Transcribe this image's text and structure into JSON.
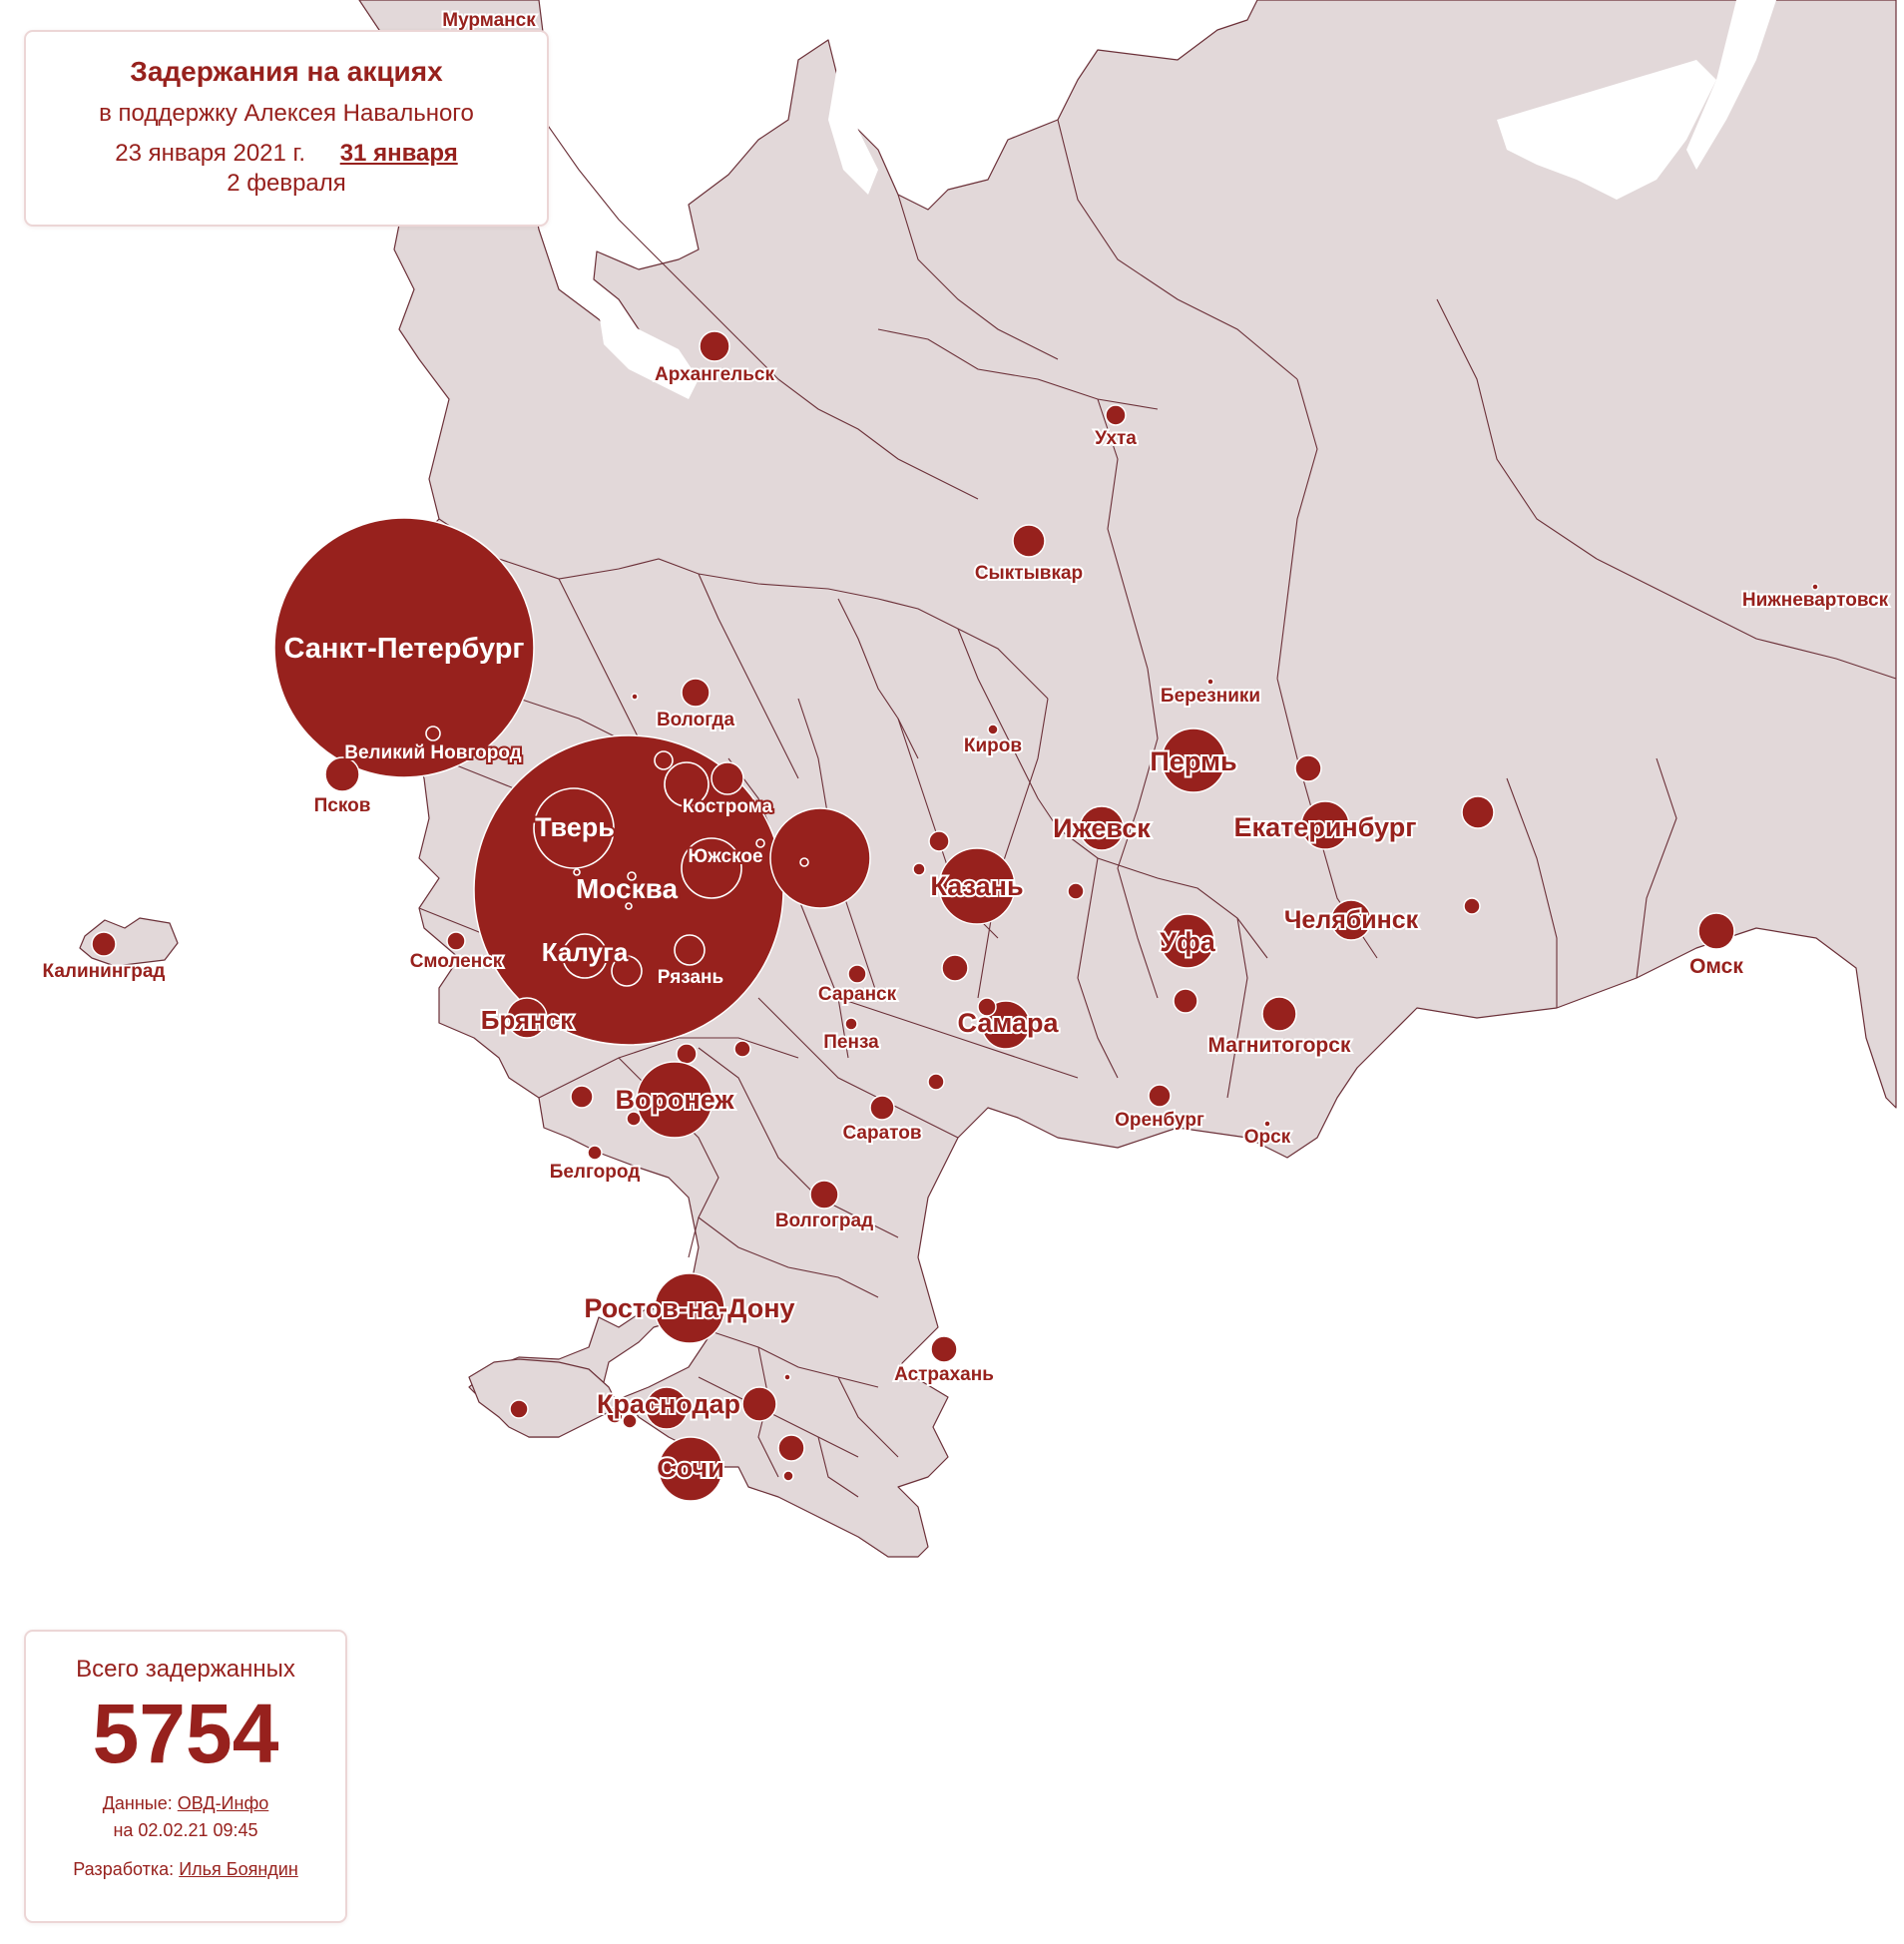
{
  "header": {
    "title": "Задержания на акциях",
    "subtitle": "в поддержку Алексея Навального",
    "dates": [
      "23 января 2021 г.",
      "31 января",
      "2 февраля"
    ],
    "active_date": "31 января"
  },
  "summary": {
    "label": "Всего задержанных",
    "total": "5754",
    "source_prefix": "Данные:",
    "source_name": "ОВД-Инфо",
    "updated": "на 02.02.21 09:45",
    "dev_prefix": "Разработка:",
    "dev_name": "Илья Бояндин"
  },
  "colors": {
    "accent": "#97211d",
    "land": "#e2d8d9",
    "border": "#6b3038",
    "panel_border": "#ecd6d6"
  },
  "cities": [
    {
      "name": "Санкт-Петербург",
      "show_label": true
    },
    {
      "name": "Москва",
      "show_label": true
    },
    {
      "name": "Тверь",
      "show_label": true
    },
    {
      "name": "Калуга",
      "show_label": true
    },
    {
      "name": "Рязань",
      "show_label": true
    },
    {
      "name": "Кострома",
      "show_label": true
    },
    {
      "name": "Южское",
      "show_label": true
    },
    {
      "name": "Великий Новгород",
      "show_label": true
    },
    {
      "name": "Псков",
      "show_label": true
    },
    {
      "name": "Смоленск",
      "show_label": true
    },
    {
      "name": "Брянск",
      "show_label": true
    },
    {
      "name": "Воронеж",
      "show_label": true
    },
    {
      "name": "Белгород",
      "show_label": true
    },
    {
      "name": "Вологда",
      "show_label": true
    },
    {
      "name": "Архангельск",
      "show_label": true
    },
    {
      "name": "Мурманск",
      "show_label": true
    },
    {
      "name": "Калининград",
      "show_label": true
    },
    {
      "name": "Ухта",
      "show_label": true
    },
    {
      "name": "Сыктывкар",
      "show_label": true
    },
    {
      "name": "Киров",
      "show_label": true
    },
    {
      "name": "Березники",
      "show_label": true
    },
    {
      "name": "Пермь",
      "show_label": true
    },
    {
      "name": "Ижевск",
      "show_label": true
    },
    {
      "name": "Казань",
      "show_label": true
    },
    {
      "name": "Екатеринбург",
      "show_label": true
    },
    {
      "name": "Челябинск",
      "show_label": true
    },
    {
      "name": "Уфа",
      "show_label": true
    },
    {
      "name": "Магнитогорск",
      "show_label": true
    },
    {
      "name": "Самара",
      "show_label": true
    },
    {
      "name": "Саранск",
      "show_label": true
    },
    {
      "name": "Пенза",
      "show_label": true
    },
    {
      "name": "Саратов",
      "show_label": true
    },
    {
      "name": "Оренбург",
      "show_label": true
    },
    {
      "name": "Орск",
      "show_label": true
    },
    {
      "name": "Омск",
      "show_label": true
    },
    {
      "name": "Нижневартовск",
      "show_label": true
    },
    {
      "name": "Волгоград",
      "show_label": true
    },
    {
      "name": "Ростов-на-Дону",
      "show_label": true
    },
    {
      "name": "Астрахань",
      "show_label": true
    },
    {
      "name": "Краснодар",
      "show_label": true
    },
    {
      "name": "Сочи",
      "show_label": true
    }
  ]
}
